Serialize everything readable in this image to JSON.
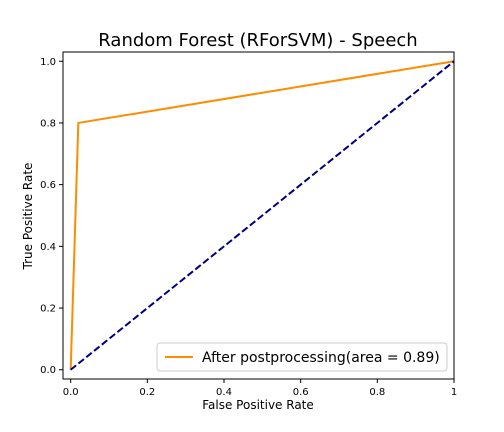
{
  "chart_data": {
    "type": "line",
    "title": "Random Forest (RForSVM) - Speech",
    "xlabel": "False Positive Rate",
    "ylabel": "True Positive Rate",
    "xlim": [
      -0.02,
      1.0
    ],
    "ylim": [
      -0.03,
      1.03
    ],
    "x_ticks": [
      0.0,
      0.2,
      0.4,
      0.6,
      0.8,
      1.0
    ],
    "y_ticks": [
      0.0,
      0.2,
      0.4,
      0.6,
      0.8,
      1.0
    ],
    "x_tick_labels": [
      "0.0",
      "0.2",
      "0.4",
      "0.6",
      "0.8",
      "1"
    ],
    "y_tick_labels": [
      "0.0",
      "0.2",
      "0.4",
      "0.6",
      "0.8",
      "1.0"
    ],
    "grid": false,
    "legend_position": "lower-right",
    "series": [
      {
        "name": "After postprocessing(area = 0.89)",
        "color": "#ff8c00",
        "style": "solid",
        "x": [
          0.0,
          0.02,
          1.0
        ],
        "y": [
          0.0,
          0.8,
          1.0
        ]
      },
      {
        "color": "#000080",
        "style": "dashed",
        "x": [
          0.0,
          1.0
        ],
        "y": [
          0.0,
          1.0
        ]
      }
    ]
  }
}
